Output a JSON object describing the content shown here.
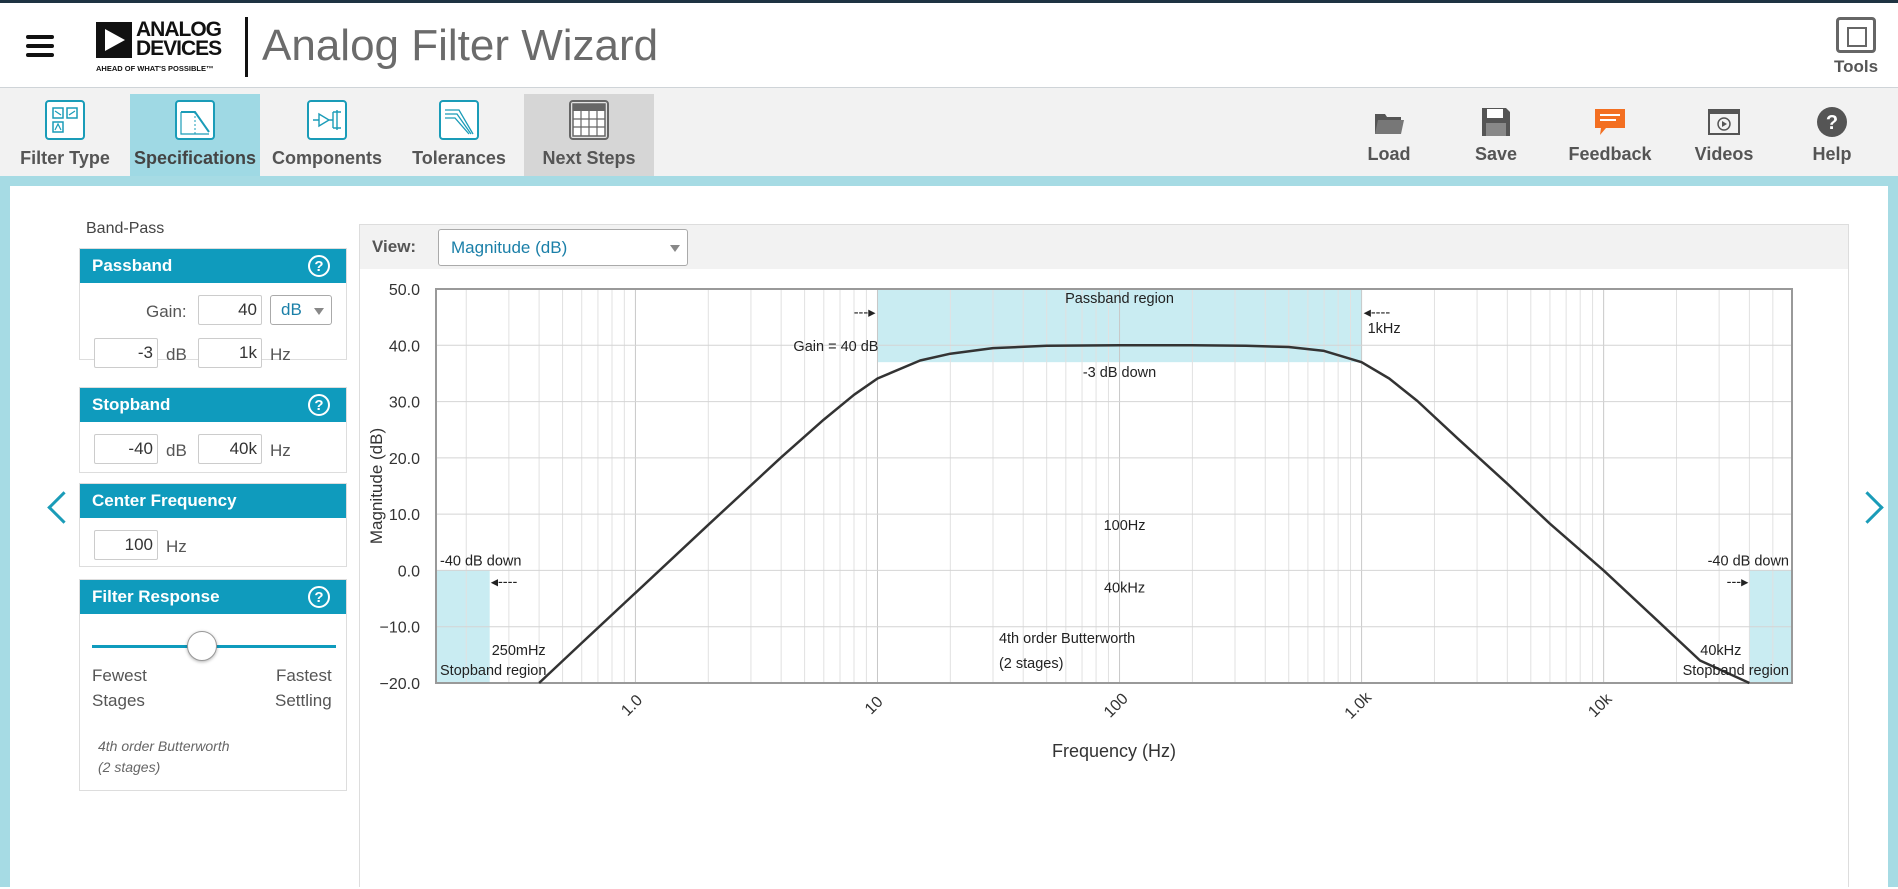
{
  "header": {
    "logo_line1": "ANALOG",
    "logo_line2": "DEVICES",
    "logo_tagline": "AHEAD OF WHAT'S POSSIBLE™",
    "app_title": "Analog Filter Wizard",
    "tools_label": "Tools"
  },
  "toolbar": {
    "steps": [
      {
        "label": "Filter Type",
        "icon": "filter-type-icon"
      },
      {
        "label": "Specifications",
        "icon": "specifications-icon"
      },
      {
        "label": "Components",
        "icon": "components-icon"
      },
      {
        "label": "Tolerances",
        "icon": "tolerances-icon"
      },
      {
        "label": "Next Steps",
        "icon": "next-steps-icon"
      }
    ],
    "actions": [
      {
        "label": "Load",
        "icon": "folder-icon"
      },
      {
        "label": "Save",
        "icon": "floppy-icon"
      },
      {
        "label": "Feedback",
        "icon": "chat-bubble-icon",
        "color": "#f36f21"
      },
      {
        "label": "Videos",
        "icon": "video-icon"
      },
      {
        "label": "Help",
        "icon": "question-icon"
      }
    ]
  },
  "filter_name": "Band-Pass",
  "passband": {
    "title": "Passband",
    "gain_label": "Gain:",
    "gain_value": "40",
    "gain_unit": "dB",
    "atten_value": "-3",
    "atten_unit": "dB",
    "freq_value": "1k",
    "freq_unit": "Hz"
  },
  "stopband": {
    "title": "Stopband",
    "atten_value": "-40",
    "atten_unit": "dB",
    "freq_value": "40k",
    "freq_unit": "Hz"
  },
  "center_frequency": {
    "title": "Center Frequency",
    "value": "100",
    "unit": "Hz"
  },
  "filter_response": {
    "title": "Filter Response",
    "left_label_1": "Fewest",
    "left_label_2": "Stages",
    "right_label_1": "Fastest",
    "right_label_2": "Settling",
    "slider_position": 0.45,
    "note_1": "4th order Butterworth",
    "note_2": "(2 stages)"
  },
  "view": {
    "label": "View:",
    "selected": "Magnitude (dB)"
  },
  "colors": {
    "accent": "#0f9bbd",
    "region_fill": "#c9ecf2",
    "curve": "#333333"
  },
  "chart_data": {
    "type": "line",
    "xlabel": "Frequency (Hz)",
    "ylabel": "Magnitude (dB)",
    "x_scale": "log",
    "xlim": [
      0.15,
      60000
    ],
    "ylim": [
      -20,
      50
    ],
    "y_ticks": [
      "50.0",
      "40.0",
      "30.0",
      "20.0",
      "10.0",
      "0.0",
      "−10.0",
      "−20.0"
    ],
    "y_tick_values": [
      50,
      40,
      30,
      20,
      10,
      0,
      -10,
      -20
    ],
    "x_ticks": [
      "1.0",
      "10",
      "100",
      "1.0k",
      "10k"
    ],
    "x_tick_values": [
      1,
      10,
      100,
      1000,
      10000
    ],
    "grid": true,
    "series": [
      {
        "x": [
          0.4,
          0.6,
          1,
          2,
          4,
          6,
          8,
          10,
          15,
          20,
          30,
          50,
          100,
          200,
          333,
          500,
          700,
          1000,
          1300,
          1700,
          2500,
          4000,
          6000,
          10000,
          16000,
          25000,
          40000
        ],
        "y": [
          -20,
          -12.9,
          -4.0,
          8.1,
          20.1,
          26.8,
          31.2,
          34.1,
          37.3,
          38.5,
          39.5,
          39.9,
          40.0,
          40.0,
          39.9,
          39.7,
          39.0,
          37.0,
          34.1,
          30.1,
          23.4,
          15.4,
          8.3,
          -0.0,
          -8.2,
          -16.0,
          -20
        ]
      }
    ],
    "annotations": {
      "passband_region": "Passband region",
      "passband_left_arrow": "---▸",
      "gain_label": "Gain = 40 dB",
      "passband_right_arrow": "◂----",
      "passband_right_freq": "1kHz",
      "minus3_label": "-3 dB down",
      "center_label": "100Hz",
      "stop_freq_label": "40kHz",
      "stop_left_label": "-40 dB down",
      "stop_left_arrow": "◂----",
      "stop_left_freq": "250mHz",
      "stop_left_region": "Stopband region",
      "stop_right_label": "-40 dB down",
      "stop_right_arrow": "---▸",
      "stop_right_freq": "40kHz",
      "stop_right_region": "Stopband region",
      "order_label_1": "4th order Butterworth",
      "order_label_2": "(2 stages)"
    }
  }
}
